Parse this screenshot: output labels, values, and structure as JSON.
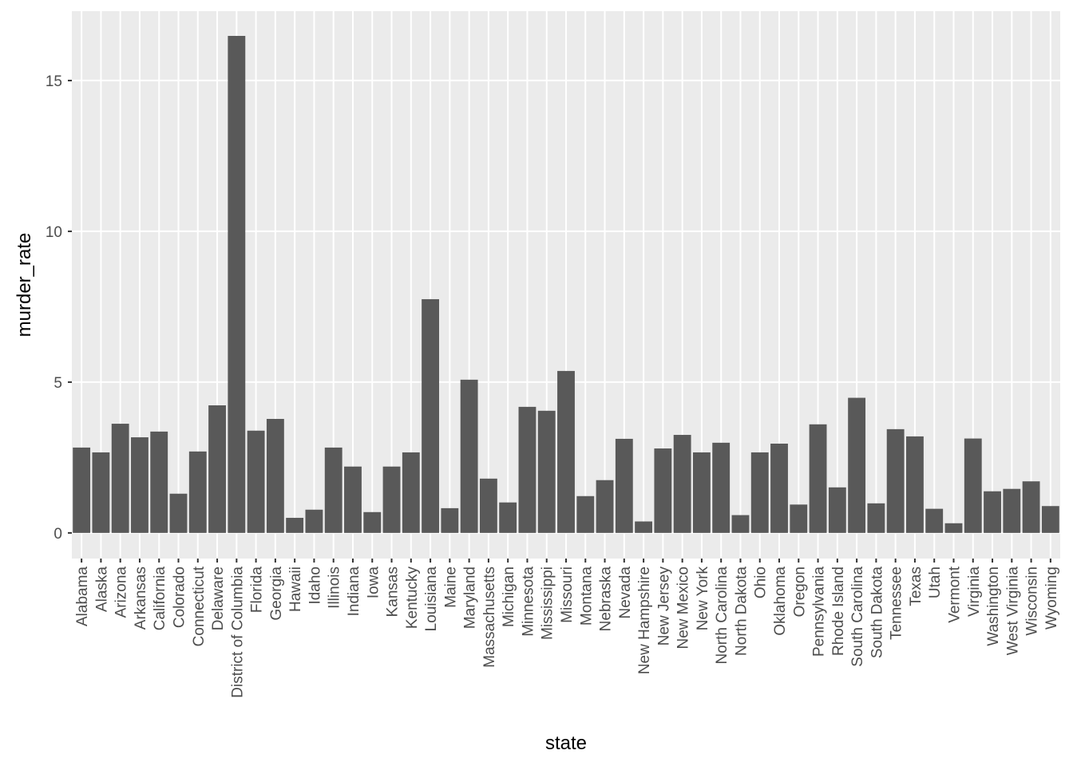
{
  "chart_data": {
    "type": "bar",
    "x_label": "state",
    "y_label": "murder_rate",
    "color": "#595959",
    "grid": true,
    "categories": [
      "Alabama",
      "Alaska",
      "Arizona",
      "Arkansas",
      "California",
      "Colorado",
      "Connecticut",
      "Delaware",
      "District of Columbia",
      "Florida",
      "Georgia",
      "Hawaii",
      "Idaho",
      "Illinois",
      "Indiana",
      "Iowa",
      "Kansas",
      "Kentucky",
      "Louisiana",
      "Maine",
      "Maryland",
      "Massachusetts",
      "Michigan",
      "Minnesota",
      "Mississippi",
      "Missouri",
      "Montana",
      "Nebraska",
      "Nevada",
      "New Hampshire",
      "New Jersey",
      "New Mexico",
      "New York",
      "North Carolina",
      "North Dakota",
      "Ohio",
      "Oklahoma",
      "Oregon",
      "Pennsylvania",
      "Rhode Island",
      "South Carolina",
      "South Dakota",
      "Tennessee",
      "Texas",
      "Utah",
      "Vermont",
      "Virginia",
      "Washington",
      "West Virginia",
      "Wisconsin",
      "Wyoming"
    ],
    "values": [
      2.83,
      2.67,
      3.62,
      3.17,
      3.36,
      1.3,
      2.7,
      4.23,
      16.48,
      3.39,
      3.78,
      0.5,
      0.77,
      2.83,
      2.2,
      0.69,
      2.2,
      2.67,
      7.75,
      0.82,
      5.08,
      1.8,
      1.01,
      4.18,
      4.05,
      5.37,
      1.22,
      1.75,
      3.12,
      0.38,
      2.8,
      3.25,
      2.67,
      2.99,
      0.59,
      2.67,
      2.96,
      0.94,
      3.6,
      1.51,
      4.48,
      0.98,
      3.44,
      3.2,
      0.8,
      0.32,
      3.13,
      1.38,
      1.46,
      1.71,
      0.89
    ],
    "ylim": [
      -0.85,
      17.3
    ],
    "yticks": [
      0,
      5,
      10,
      15
    ]
  }
}
